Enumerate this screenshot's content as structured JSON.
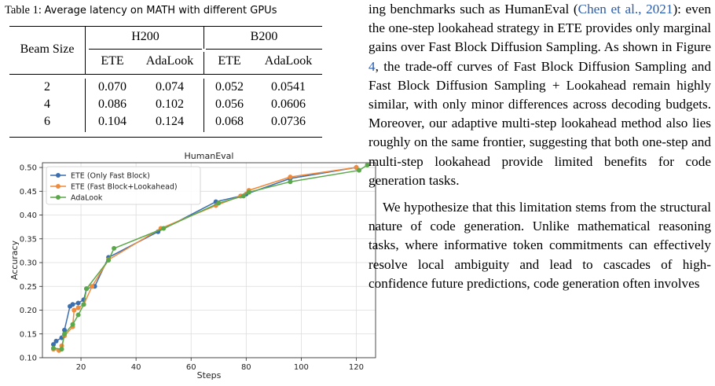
{
  "table": {
    "caption_label": "Table 1:",
    "caption_text": "Average latency on MATH with different GPUs",
    "row_header": "Beam Size",
    "groups": [
      "H200",
      "B200"
    ],
    "subheaders": [
      "ETE",
      "AdaLook",
      "ETE",
      "AdaLook"
    ],
    "rows": [
      {
        "beam": "2",
        "vals": [
          "0.070",
          "0.074",
          "0.052",
          "0.0541"
        ]
      },
      {
        "beam": "4",
        "vals": [
          "0.086",
          "0.102",
          "0.056",
          "0.0606"
        ]
      },
      {
        "beam": "6",
        "vals": [
          "0.104",
          "0.124",
          "0.068",
          "0.0736"
        ]
      }
    ]
  },
  "chart_data": {
    "type": "line",
    "title": "HumanEval",
    "xlabel": "Steps",
    "ylabel": "Accuracy",
    "xlim": [
      6,
      127
    ],
    "ylim": [
      0.1,
      0.51
    ],
    "xticks": [
      20,
      40,
      60,
      80,
      100,
      120
    ],
    "yticks": [
      0.1,
      0.15,
      0.2,
      0.25,
      0.3,
      0.35,
      0.4,
      0.45,
      0.5
    ],
    "ytick_labels": [
      "0.10",
      "0.15",
      "0.20",
      "0.25",
      "0.30",
      "0.35",
      "0.40",
      "0.45",
      "0.50"
    ],
    "xtick_labels": [
      "20",
      "40",
      "60",
      "80",
      "100",
      "120"
    ],
    "grid": true,
    "legend": "upper-left",
    "series": [
      {
        "name": "ETE (Only Fast Block)",
        "color": "#3b6fb0",
        "x": [
          10,
          11,
          13,
          14,
          16,
          17,
          19,
          21,
          22,
          25,
          30,
          48,
          69,
          78,
          80,
          96,
          120
        ],
        "y": [
          0.128,
          0.135,
          0.142,
          0.158,
          0.208,
          0.212,
          0.215,
          0.222,
          0.245,
          0.25,
          0.311,
          0.365,
          0.428,
          0.44,
          0.444,
          0.477,
          0.5
        ]
      },
      {
        "name": "ETE (Fast Block+Lookahead)",
        "color": "#f08a3c",
        "x": [
          10,
          12,
          13,
          14,
          17,
          17.5,
          19,
          21,
          24,
          30,
          49,
          69,
          78,
          81,
          96,
          120
        ],
        "y": [
          0.118,
          0.115,
          0.125,
          0.146,
          0.165,
          0.2,
          0.205,
          0.212,
          0.25,
          0.306,
          0.372,
          0.42,
          0.44,
          0.452,
          0.48,
          0.5
        ]
      },
      {
        "name": "AdaLook",
        "color": "#5ba84a",
        "x": [
          10,
          13,
          14,
          17,
          19,
          21,
          22,
          30,
          32,
          50,
          70,
          79,
          81,
          96,
          121,
          124
        ],
        "y": [
          0.12,
          0.118,
          0.15,
          0.17,
          0.19,
          0.212,
          0.245,
          0.305,
          0.33,
          0.372,
          0.425,
          0.44,
          0.448,
          0.47,
          0.494,
          0.505
        ]
      }
    ]
  },
  "body": {
    "p1_a": "ing benchmarks such as HumanEval (",
    "p1_cite1": "Chen et al., 2021",
    "p1_b": "): even the one-step lookahead strategy in ETE provides only marginal gains over Fast Block Diffusion Sampling. As shown in Figure ",
    "p1_cite2": "4",
    "p1_c": ", the trade-off curves of Fast Block Diffusion Sampling and Fast Block Diffusion Sampling + Lookahead remain highly similar, with only minor differences across decoding budgets. Moreover, our adaptive multi-step lookahead method also lies roughly on the same frontier, suggesting that both one-step and multi-step lookahead provide limited benefits for code generation tasks.",
    "p2": "We hypothesize that this limitation stems from the structural nature of code generation. Unlike mathematical reasoning tasks, where informative token commitments can effectively resolve local ambiguity and lead to cascades of high-confidence future predictions, code generation often involves"
  }
}
